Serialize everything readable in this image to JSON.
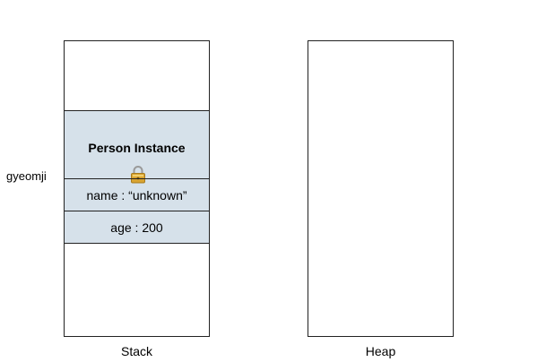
{
  "variable": {
    "name": "gyeomji"
  },
  "stack": {
    "label": "Stack",
    "instance": {
      "title": "Person Instance",
      "fields": [
        {
          "text": "name : “unknown”"
        },
        {
          "text": "age : 200"
        }
      ]
    }
  },
  "heap": {
    "label": "Heap"
  },
  "colors": {
    "instance_fill": "#d6e1ea",
    "border": "#222222",
    "lock_gold": "#d9a431"
  },
  "icons": {
    "lock": "lock-icon"
  }
}
